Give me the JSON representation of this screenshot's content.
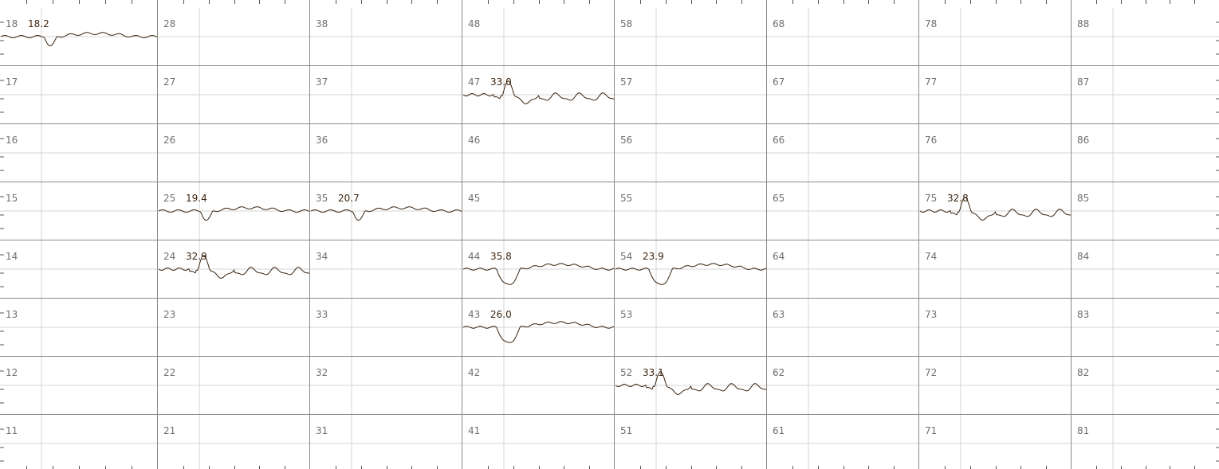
{
  "colors": {
    "background": "#ffffff",
    "grid_major": "#8a8a8a",
    "grid_minor": "#d4d4d4",
    "trace": "#3b2410",
    "label_text": "#6f6f6f",
    "value_text": "#3b2410"
  },
  "columns": [
    10,
    20,
    30,
    40,
    50,
    60,
    70,
    80
  ],
  "row_units": [
    8,
    7,
    6,
    5,
    4,
    3,
    2,
    1
  ],
  "cells": [
    {
      "id": "18",
      "value": "18.2",
      "waveform": "A"
    },
    {
      "id": "28"
    },
    {
      "id": "38"
    },
    {
      "id": "48"
    },
    {
      "id": "58"
    },
    {
      "id": "68"
    },
    {
      "id": "78"
    },
    {
      "id": "88"
    },
    {
      "id": "17"
    },
    {
      "id": "27"
    },
    {
      "id": "37"
    },
    {
      "id": "47",
      "value": "33.0",
      "waveform": "B"
    },
    {
      "id": "57"
    },
    {
      "id": "67"
    },
    {
      "id": "77"
    },
    {
      "id": "87"
    },
    {
      "id": "16"
    },
    {
      "id": "26"
    },
    {
      "id": "36"
    },
    {
      "id": "46"
    },
    {
      "id": "56"
    },
    {
      "id": "66"
    },
    {
      "id": "76"
    },
    {
      "id": "86"
    },
    {
      "id": "15"
    },
    {
      "id": "25",
      "value": "19.4",
      "waveform": "A"
    },
    {
      "id": "35",
      "value": "20.7",
      "waveform": "A"
    },
    {
      "id": "45"
    },
    {
      "id": "55"
    },
    {
      "id": "65"
    },
    {
      "id": "75",
      "value": "32.8",
      "waveform": "B"
    },
    {
      "id": "85"
    },
    {
      "id": "14"
    },
    {
      "id": "24",
      "value": "32.9",
      "waveform": "B"
    },
    {
      "id": "34"
    },
    {
      "id": "44",
      "value": "35.8",
      "waveform": "C"
    },
    {
      "id": "54",
      "value": "23.9",
      "waveform": "C"
    },
    {
      "id": "64"
    },
    {
      "id": "74"
    },
    {
      "id": "84"
    },
    {
      "id": "13"
    },
    {
      "id": "23"
    },
    {
      "id": "33"
    },
    {
      "id": "43",
      "value": "26.0",
      "waveform": "C"
    },
    {
      "id": "53"
    },
    {
      "id": "63"
    },
    {
      "id": "73"
    },
    {
      "id": "83"
    },
    {
      "id": "12"
    },
    {
      "id": "22"
    },
    {
      "id": "32"
    },
    {
      "id": "42"
    },
    {
      "id": "52",
      "value": "33.1",
      "waveform": "B"
    },
    {
      "id": "62"
    },
    {
      "id": "72"
    },
    {
      "id": "82"
    },
    {
      "id": "11"
    },
    {
      "id": "21"
    },
    {
      "id": "31"
    },
    {
      "id": "41"
    },
    {
      "id": "51"
    },
    {
      "id": "61"
    },
    {
      "id": "71"
    },
    {
      "id": "81"
    }
  ]
}
